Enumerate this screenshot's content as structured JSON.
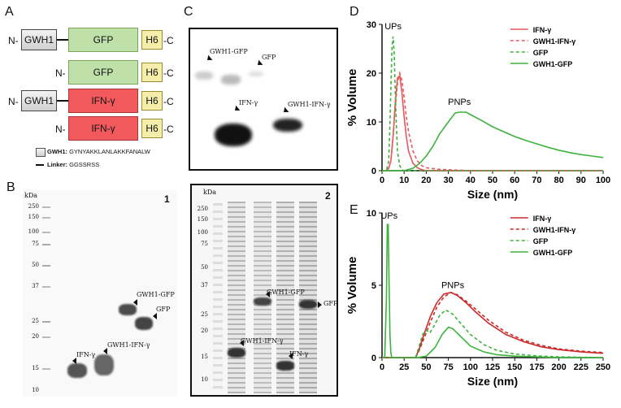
{
  "panel_labels": {
    "a": "A",
    "b": "B",
    "c": "C",
    "d": "D",
    "e": "E"
  },
  "constructs": {
    "n_term": "N-",
    "c_term": "C",
    "gwh1": "GWH1",
    "gfp": "GFP",
    "ifn": "IFN-γ",
    "h6": "H6",
    "legend_gwh1_bold": "GWH1:",
    "legend_gwh1_seq": "GYNYAKKLANLAKKFANALW",
    "legend_linker_bold": "Linker:",
    "legend_linker_seq": "GGSSRSS"
  },
  "gel_b": {
    "number": "1",
    "kda": "kDa",
    "ladder": [
      "250",
      "150",
      "100",
      "75",
      "50",
      "37",
      "25",
      "20",
      "15",
      "10"
    ],
    "labels": {
      "gwh1_gfp": "GWH1-GFP",
      "gfp": "GFP",
      "ifn": "IFN-γ",
      "gwh1_ifn": "GWH1-IFN-γ"
    }
  },
  "gel_c": {
    "labels": {
      "gwh1_gfp": "GWH1-GFP",
      "gfp": "GFP",
      "ifn": "IFN-γ",
      "gwh1_ifn": "GWH1-IFN-γ"
    }
  },
  "gel_2": {
    "number": "2",
    "kda": "kDa",
    "ladder": [
      "250",
      "150",
      "100",
      "75",
      "50",
      "37",
      "25",
      "20",
      "15",
      "10"
    ],
    "labels": {
      "gwh1_gfp": "GWH1-GFP",
      "gfp": "GFP",
      "gwh1_ifn": "GWH1-IFN-γ",
      "ifn": "IFN-γ"
    }
  },
  "chart_data": [
    {
      "type": "line",
      "panel": "D",
      "xlabel": "Size (nm)",
      "ylabel": "% Volume",
      "xlim": [
        0,
        100
      ],
      "ylim": [
        0,
        30
      ],
      "xticks": [
        0,
        10,
        20,
        30,
        40,
        50,
        60,
        70,
        80,
        90,
        100
      ],
      "yticks": [
        0,
        10,
        20,
        30
      ],
      "annotations": [
        {
          "text": "UPs",
          "x": 5,
          "y": 29
        },
        {
          "text": "PNPs",
          "x": 35,
          "y": 13.5
        }
      ],
      "legend_position": "top-right",
      "series": [
        {
          "name": "IFN-γ",
          "color": "#e8575d",
          "dash": false,
          "x": [
            0,
            2,
            3,
            4,
            5,
            6,
            7,
            8,
            9,
            10,
            11,
            12,
            14,
            16,
            18,
            20,
            25,
            30,
            40,
            60,
            80,
            100
          ],
          "y": [
            0,
            0,
            0.5,
            2,
            7,
            14,
            19,
            19.5,
            16,
            11,
            7,
            4,
            1.5,
            0.6,
            0.2,
            0,
            0,
            0,
            0,
            0,
            0,
            0
          ]
        },
        {
          "name": "GWH1-IFN-γ",
          "color": "#e8575d",
          "dash": true,
          "x": [
            0,
            2,
            3,
            4,
            5,
            6,
            7,
            8,
            9,
            10,
            11,
            12,
            14,
            16,
            18,
            20,
            25,
            30,
            40,
            60,
            80,
            100
          ],
          "y": [
            0,
            0,
            0.5,
            2,
            7,
            13,
            18,
            20,
            18.5,
            15,
            11,
            8,
            4,
            2,
            1,
            0.6,
            0.3,
            0.2,
            0,
            0,
            0,
            0
          ]
        },
        {
          "name": "GFP",
          "color": "#3cb43c",
          "dash": true,
          "x": [
            0,
            2,
            3,
            3.5,
            4,
            4.5,
            5,
            5.5,
            6,
            6.5,
            7,
            8,
            9,
            10,
            12,
            20,
            100
          ],
          "y": [
            0,
            0,
            2,
            8,
            17,
            25,
            27.5,
            24,
            16,
            9,
            4,
            1,
            0.2,
            0,
            0,
            0,
            0
          ]
        },
        {
          "name": "GWH1-GFP",
          "color": "#3cb43c",
          "dash": false,
          "x": [
            0,
            10,
            14,
            17,
            20,
            23,
            26,
            30,
            33,
            35,
            38,
            40,
            45,
            50,
            55,
            60,
            65,
            70,
            75,
            80,
            85,
            90,
            95,
            100
          ],
          "y": [
            0,
            0,
            0.5,
            1.5,
            3,
            5,
            7.5,
            10,
            11.8,
            12,
            12,
            11.5,
            10.3,
            9,
            8,
            7,
            6.2,
            5.5,
            4.8,
            4.2,
            3.7,
            3.3,
            3,
            2.7
          ]
        }
      ]
    },
    {
      "type": "line",
      "panel": "E",
      "xlabel": "Size (nm)",
      "ylabel": "% Volume",
      "xlim": [
        0,
        250
      ],
      "ylim": [
        0,
        10
      ],
      "xticks": [
        0,
        25,
        50,
        75,
        100,
        125,
        150,
        175,
        200,
        225,
        250
      ],
      "yticks": [
        0,
        5,
        10
      ],
      "annotations": [
        {
          "text": "UPs",
          "x": 8,
          "y": 9.6
        },
        {
          "text": "PNPs",
          "x": 80,
          "y": 4.8
        }
      ],
      "legend_position": "top-right",
      "series": [
        {
          "name": "IFN-γ",
          "color": "#cc2a2a",
          "dash": false,
          "x": [
            0,
            38,
            42,
            48,
            55,
            62,
            70,
            78,
            85,
            95,
            105,
            120,
            140,
            160,
            180,
            200,
            225,
            250
          ],
          "y": [
            0,
            0,
            0.6,
            1.7,
            2.9,
            3.8,
            4.4,
            4.5,
            4.3,
            3.8,
            3.2,
            2.4,
            1.6,
            1.1,
            0.75,
            0.55,
            0.4,
            0.3
          ]
        },
        {
          "name": "GWH1-IFN-γ",
          "color": "#cc2a2a",
          "dash": true,
          "x": [
            0,
            38,
            42,
            48,
            55,
            62,
            70,
            78,
            85,
            95,
            105,
            120,
            140,
            160,
            180,
            200,
            225,
            250
          ],
          "y": [
            0,
            0,
            0.5,
            1.4,
            2.5,
            3.5,
            4.2,
            4.5,
            4.35,
            3.9,
            3.4,
            2.6,
            1.75,
            1.2,
            0.85,
            0.6,
            0.45,
            0.35
          ]
        },
        {
          "name": "GFP",
          "color": "#3cb43c",
          "dash": true,
          "x": [
            0,
            38,
            42,
            46,
            50,
            54,
            58,
            65,
            72,
            80,
            90,
            100,
            115,
            130,
            150,
            175,
            200,
            250
          ],
          "y": [
            0,
            0,
            0.8,
            1.6,
            1.9,
            1.7,
            2.1,
            2.9,
            3.3,
            3.0,
            2.3,
            1.6,
            0.9,
            0.5,
            0.25,
            0.12,
            0.05,
            0
          ]
        },
        {
          "name": "GWH1-GFP",
          "color": "#3cb43c",
          "dash": false,
          "x": [
            0,
            3,
            5,
            6,
            7,
            8,
            9,
            10,
            11,
            12,
            40,
            50,
            60,
            68,
            75,
            80,
            90,
            100,
            115,
            130,
            150,
            175,
            200,
            250
          ],
          "y": [
            0,
            0,
            4,
            9.2,
            9.2,
            5,
            1.5,
            0.3,
            0,
            0,
            0,
            0.1,
            0.7,
            1.6,
            2.1,
            2.0,
            1.4,
            0.8,
            0.4,
            0.2,
            0.1,
            0.05,
            0,
            0
          ]
        }
      ]
    }
  ]
}
